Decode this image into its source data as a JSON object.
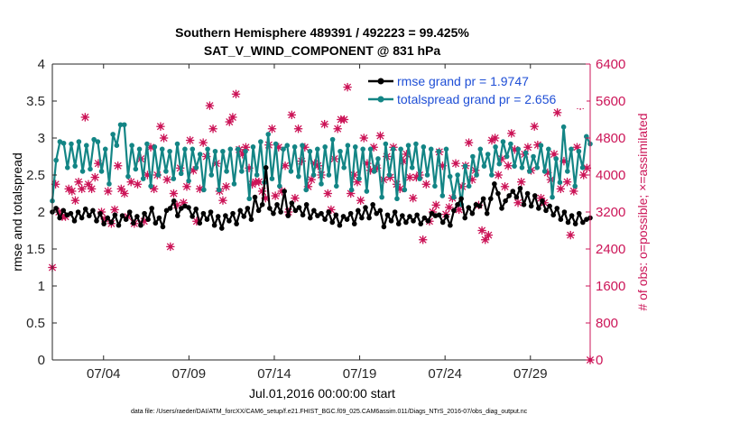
{
  "chart_data": {
    "type": "line",
    "title": "Southern Hemisphere 489391 / 492223 = 99.425%",
    "subtitle": "SAT_V_WIND_COMPONENT @ 831 hPa",
    "xlabel": "Jul.01,2016 00:00:00 start",
    "ylabel_left": "rmse and totalspread",
    "ylabel_right": "# of obs: o=possible; ×=assimilated",
    "footnote": "data file: /Users/raeder/DAI/ATM_forcXX/CAM6_setup/f.e21.FHIST_BGC.f09_025.CAM6assim.011/Diags_NTrS_2016-07/obs_diag_output.nc",
    "xlim": [
      1,
      32.5
    ],
    "ylim_left": [
      0,
      4
    ],
    "ylim_right": [
      0,
      6400
    ],
    "x_ticks": [
      4,
      9,
      14,
      19,
      24,
      29
    ],
    "x_tick_labels": [
      "07/04",
      "07/09",
      "07/14",
      "07/19",
      "07/24",
      "07/29"
    ],
    "y_ticks_left": [
      "0",
      "0.5",
      "1",
      "1.5",
      "2",
      "2.5",
      "3",
      "3.5",
      "4"
    ],
    "y_ticks_right": [
      "0",
      "800",
      "1600",
      "2400",
      "3200",
      "4000",
      "4800",
      "5600",
      "6400"
    ],
    "colors": {
      "rmse": "#000000",
      "spread": "#138585",
      "obs": "#cc1558",
      "legend_text": "#1f4fd6",
      "right_axis": "#cc1558"
    },
    "series": [
      {
        "name": "rmse grand pr = 1.9747",
        "axis": "left",
        "values": [
          2.0,
          2.05,
          1.92,
          2.02,
          1.96,
          1.98,
          1.88,
          2.0,
          1.92,
          2.04,
          1.95,
          2.02,
          1.88,
          1.98,
          1.84,
          1.92,
          1.86,
          1.96,
          1.82,
          1.95,
          1.9,
          2.0,
          1.85,
          1.94,
          1.82,
          1.98,
          1.9,
          2.05,
          1.85,
          1.92,
          1.8,
          2.02,
          2.05,
          2.15,
          1.95,
          2.05,
          2.08,
          2.06,
          1.94,
          2.04,
          1.85,
          1.98,
          1.9,
          2.0,
          1.82,
          1.94,
          1.78,
          1.95,
          1.88,
          1.98,
          1.84,
          2.02,
          1.94,
          2.05,
          1.9,
          2.2,
          2.02,
          2.1,
          2.6,
          2.05,
          1.98,
          2.1,
          2.0,
          2.28,
          1.95,
          2.12,
          2.02,
          2.06,
          1.96,
          2.1,
          1.92,
          2.02,
          1.95,
          1.98,
          1.9,
          2.0,
          1.86,
          1.96,
          1.82,
          1.94,
          1.9,
          1.98,
          1.84,
          2.02,
          1.92,
          2.06,
          1.92,
          2.1,
          1.98,
          2.02,
          1.8,
          1.96,
          1.88,
          2.0,
          1.84,
          1.95,
          1.86,
          1.94,
          1.88,
          1.96,
          1.84,
          1.92,
          1.88,
          1.98,
          1.95,
          1.96,
          1.86,
          1.94,
          1.82,
          2.02,
          2.1,
          2.18,
          1.92,
          2.06,
          1.98,
          2.1,
          2.08,
          2.18,
          1.98,
          2.18,
          2.38,
          2.25,
          2.05,
          2.15,
          2.22,
          2.28,
          2.2,
          2.32,
          2.1,
          2.25,
          2.08,
          2.22,
          2.05,
          2.15,
          2.02,
          2.08,
          1.96,
          2.05,
          1.9,
          2.0,
          1.86,
          1.95,
          1.84,
          1.98,
          1.86,
          1.9,
          1.92
        ],
        "y_ticks_shared": true
      },
      {
        "name": "totalspread grand pr = 2.656",
        "axis": "left",
        "values": [
          2.15,
          2.7,
          2.95,
          2.93,
          2.6,
          2.92,
          2.62,
          2.95,
          2.55,
          2.9,
          2.58,
          2.98,
          2.95,
          2.55,
          2.85,
          2.38,
          3.05,
          2.9,
          3.18,
          3.18,
          2.48,
          2.9,
          2.58,
          2.85,
          2.45,
          2.92,
          2.35,
          2.88,
          2.5,
          2.85,
          2.55,
          2.82,
          2.45,
          2.92,
          2.52,
          2.85,
          2.42,
          2.85,
          2.6,
          2.78,
          2.3,
          2.85,
          2.5,
          2.82,
          2.3,
          2.82,
          2.55,
          2.85,
          2.38,
          2.85,
          2.55,
          2.82,
          2.18,
          2.88,
          2.5,
          2.95,
          2.4,
          3.05,
          2.45,
          2.92,
          2.35,
          2.85,
          2.9,
          2.55,
          2.88,
          2.48,
          2.9,
          2.3,
          2.82,
          2.5,
          2.85,
          2.38,
          2.88,
          2.5,
          2.98,
          2.35,
          2.82,
          2.6,
          2.9,
          2.3,
          2.88,
          2.45,
          2.85,
          2.28,
          2.85,
          2.55,
          2.72,
          2.2,
          2.92,
          2.5,
          2.85,
          2.18,
          2.85,
          2.3,
          2.9,
          2.6,
          2.92,
          2.45,
          2.88,
          2.5,
          2.85,
          2.35,
          2.82,
          2.22,
          2.85,
          2.48,
          2.2,
          2.5,
          2.1,
          2.62,
          2.35,
          2.75,
          2.5,
          2.85,
          2.62,
          2.78,
          2.5,
          2.88,
          2.65,
          2.95,
          2.75,
          2.92,
          2.62,
          2.85,
          2.6,
          2.8,
          2.55,
          2.75,
          2.6,
          2.9,
          2.55,
          2.85,
          2.2,
          2.72,
          2.4,
          3.15,
          2.55,
          2.85,
          2.35,
          2.82,
          2.6,
          3.02,
          2.92
        ]
      },
      {
        "name": "assimilated obs",
        "axis": "right",
        "values": [
          2000,
          3800,
          3200,
          3100,
          3100,
          3700,
          3650,
          3450,
          3850,
          3700,
          5250,
          3800,
          3700,
          3950,
          4250,
          3200,
          3050,
          3650,
          2950,
          3250,
          4200,
          3700,
          3600,
          3100,
          3850,
          2950,
          3800,
          4350,
          3000,
          4000,
          4600,
          3700,
          4000,
          5050,
          4800,
          3900,
          2450,
          3600,
          3350,
          4150,
          3400,
          3750,
          4750,
          4100,
          3000,
          3700,
          4700,
          4400,
          5500,
          5000,
          4250,
          3650,
          3450,
          3750,
          5150,
          5250,
          5750,
          4550,
          4450,
          4600,
          4150,
          3800,
          3850,
          3850,
          3650,
          3500,
          4650,
          5000,
          3550,
          4600,
          3650,
          4200,
          3200,
          5300,
          3500,
          5000,
          4300,
          4600,
          3750,
          3900,
          4250,
          4200,
          4000,
          5100,
          3600,
          3250,
          4350,
          5000,
          5200,
          5200,
          5900,
          3600,
          4000,
          3850,
          3450,
          4800,
          4250,
          4100,
          4600,
          4150,
          4850,
          3900,
          4400,
          3950,
          4600,
          3800,
          3700,
          4300,
          4450,
          3950,
          3500,
          3950,
          4000,
          2600,
          3800,
          3000,
          3200,
          3350,
          4500,
          4200,
          3150,
          3300,
          3500,
          4250,
          3250,
          3750,
          4200,
          4700,
          3900,
          4100,
          3350,
          2800,
          2600,
          2700,
          4750,
          4800,
          4000,
          4350,
          3750,
          4200,
          4900,
          4550,
          3400,
          3850,
          4450,
          4600,
          4100,
          5050,
          4650,
          3500,
          3400,
          4050,
          3900,
          4450,
          5350,
          3700,
          4300,
          3850,
          2700,
          3650,
          4600,
          5500,
          4000,
          4150,
          0
        ]
      }
    ]
  }
}
